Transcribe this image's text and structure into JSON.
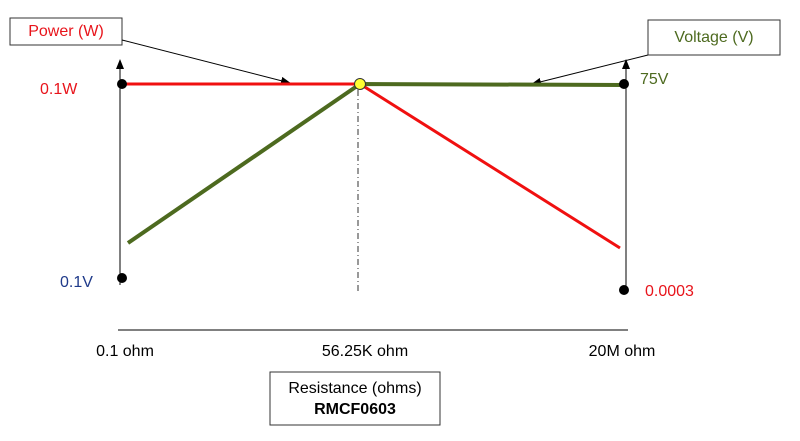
{
  "power_box": {
    "label": "Power (W)"
  },
  "voltage_box": {
    "label": "Voltage (V)"
  },
  "left_axis": {
    "top_label": "0.1W",
    "bottom_label": "0.1V"
  },
  "right_axis": {
    "top_label": "75V",
    "bottom_label": "0.0003"
  },
  "x_axis": {
    "labels": [
      "0.1 ohm",
      "56.25K ohm",
      "20M ohm"
    ]
  },
  "caption": {
    "line1": "Resistance (ohms)",
    "line2": "RMCF0603"
  }
}
